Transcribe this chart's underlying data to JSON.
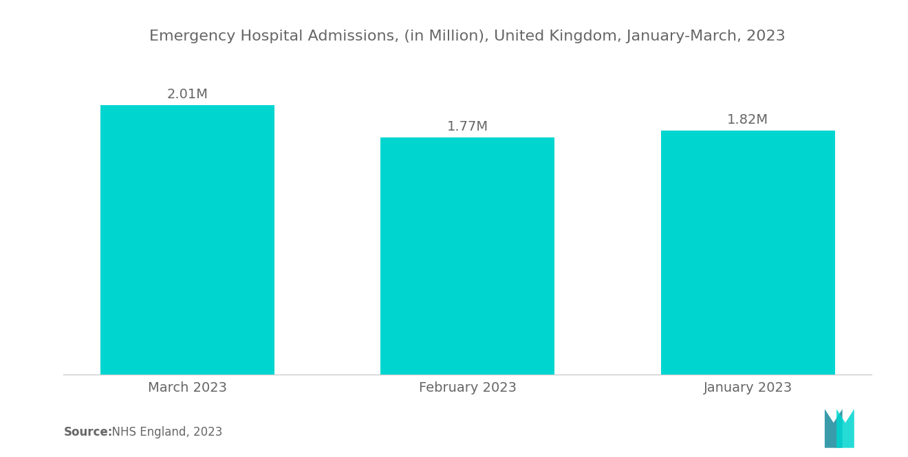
{
  "title": "Emergency Hospital Admissions, (in Million), United Kingdom, January-March, 2023",
  "categories": [
    "March 2023",
    "February 2023",
    "January 2023"
  ],
  "values": [
    2.01,
    1.77,
    1.82
  ],
  "value_labels": [
    "2.01M",
    "1.77M",
    "1.82M"
  ],
  "bar_color": "#00D5CF",
  "title_color": "#666666",
  "label_color": "#666666",
  "source_bold": "Source:",
  "source_normal": "  NHS England, 2023",
  "background_color": "#ffffff",
  "bar_width": 0.62,
  "ylim": [
    0,
    2.35
  ],
  "title_fontsize": 16,
  "label_fontsize": 14,
  "value_fontsize": 14,
  "source_fontsize": 12
}
